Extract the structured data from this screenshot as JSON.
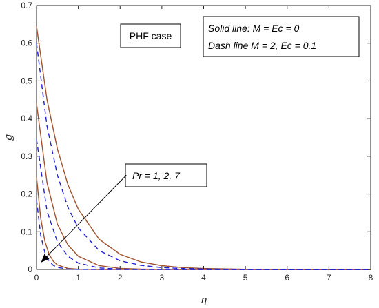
{
  "chart_data": {
    "type": "line",
    "xlabel": "η",
    "ylabel": "g",
    "xlim": [
      0,
      8
    ],
    "ylim": [
      0,
      0.7
    ],
    "xticks": [
      "0",
      "1",
      "2",
      "3",
      "4",
      "5",
      "6",
      "7",
      "8"
    ],
    "yticks": [
      "0",
      "0.1",
      "0.2",
      "0.3",
      "0.4",
      "0.5",
      "0.6",
      "0.7"
    ],
    "grid": false,
    "series": [
      {
        "style": "solid",
        "color": "#a0522d",
        "x": [
          0,
          0.25,
          0.5,
          0.75,
          1,
          1.5,
          2,
          2.5,
          3,
          3.5,
          4,
          5,
          6,
          7,
          8
        ],
        "y": [
          0.645,
          0.45,
          0.32,
          0.225,
          0.16,
          0.08,
          0.04,
          0.02,
          0.01,
          0.005,
          0.0025,
          0.0006,
          0.00015,
          4e-05,
          1e-05
        ]
      },
      {
        "style": "solid",
        "color": "#a0522d",
        "x": [
          0,
          0.25,
          0.5,
          0.75,
          1,
          1.5,
          2,
          2.5,
          3,
          4,
          5,
          6,
          7,
          8
        ],
        "y": [
          0.44,
          0.23,
          0.12,
          0.065,
          0.035,
          0.01,
          0.003,
          0.001,
          0.0003,
          3e-05,
          0,
          0,
          0,
          0
        ]
      },
      {
        "style": "solid",
        "color": "#a0522d",
        "x": [
          0,
          0.1,
          0.2,
          0.3,
          0.4,
          0.5,
          0.75,
          1,
          1.5,
          2,
          3,
          4,
          5,
          6,
          7,
          8
        ],
        "y": [
          0.245,
          0.135,
          0.075,
          0.04,
          0.022,
          0.012,
          0.003,
          0.0008,
          5e-05,
          0,
          0,
          0,
          0,
          0,
          0,
          0
        ]
      },
      {
        "style": "dashed",
        "color": "#1f1fd6",
        "x": [
          0,
          0.25,
          0.5,
          0.75,
          1,
          1.5,
          2,
          2.5,
          3,
          3.5,
          4,
          5,
          6,
          7,
          8
        ],
        "y": [
          0.6,
          0.38,
          0.25,
          0.165,
          0.11,
          0.05,
          0.023,
          0.011,
          0.005,
          0.0025,
          0.0012,
          0.0003,
          7e-05,
          2e-05,
          0
        ]
      },
      {
        "style": "dashed",
        "color": "#1f1fd6",
        "x": [
          0,
          0.25,
          0.5,
          0.75,
          1,
          1.5,
          2,
          3,
          4,
          5,
          6,
          7,
          8
        ],
        "y": [
          0.345,
          0.155,
          0.073,
          0.035,
          0.017,
          0.004,
          0.001,
          0.0001,
          0,
          0,
          0,
          0,
          0
        ]
      },
      {
        "style": "dashed",
        "color": "#1f1fd6",
        "x": [
          0,
          0.1,
          0.2,
          0.3,
          0.4,
          0.5,
          0.75,
          1,
          1.5,
          2,
          3,
          4,
          5,
          6,
          7,
          8
        ],
        "y": [
          0.185,
          0.09,
          0.045,
          0.022,
          0.011,
          0.0055,
          0.001,
          0.0002,
          0,
          0,
          0,
          0,
          0,
          0,
          0,
          0
        ]
      }
    ],
    "annotations": {
      "case_label": "PHF case",
      "legend_solid": "Solid line: M = Ec = 0",
      "legend_dash": "Dash line M = 2, Ec = 0.1",
      "arrow_label_italic": "Pr",
      "arrow_label_rest": " = 1, 2, 7",
      "arrow_from": {
        "x": 2.15,
        "y": 0.25
      },
      "arrow_to": {
        "x": 0.12,
        "y": 0.02
      }
    }
  }
}
